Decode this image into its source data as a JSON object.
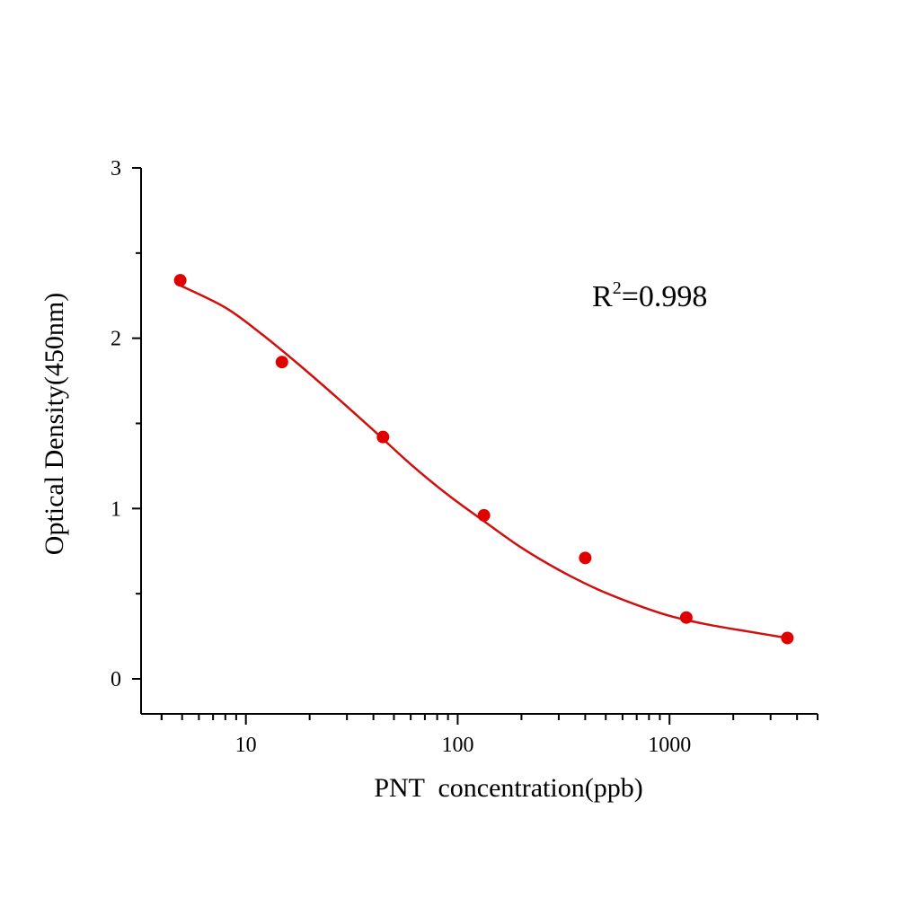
{
  "chart_data": {
    "type": "scatter",
    "title": "",
    "xlabel": "PNT  concentration(ppb)",
    "ylabel": "Optical Density(450nm)",
    "x_scale": "log",
    "xlim": [
      3.2,
      5000
    ],
    "ylim": [
      -0.2,
      3
    ],
    "x_ticks": [
      10,
      100,
      1000
    ],
    "x_tick_labels": [
      "10",
      "100",
      "1000"
    ],
    "y_ticks": [
      0,
      1,
      2,
      3
    ],
    "y_tick_labels": [
      "0",
      "1",
      "2",
      "3"
    ],
    "grid": false,
    "legend": "none",
    "annotation": {
      "prefix": "R",
      "superscript": "2",
      "suffix": "=0.998"
    },
    "series": [
      {
        "x": [
          4.9,
          14.8,
          44.4,
          133,
          400,
          1200,
          3600
        ],
        "y": [
          2.34,
          1.86,
          1.42,
          0.96,
          0.71,
          0.36,
          0.24
        ],
        "fit_curve": {
          "x": [
            4.9,
            8,
            12,
            18,
            27,
            40,
            60,
            90,
            135,
            200,
            300,
            450,
            680,
            1000,
            1500,
            2300,
            3600
          ],
          "y": [
            2.31,
            2.18,
            2.02,
            1.84,
            1.65,
            1.46,
            1.26,
            1.08,
            0.92,
            0.77,
            0.64,
            0.53,
            0.44,
            0.37,
            0.32,
            0.28,
            0.24
          ]
        }
      }
    ],
    "colors": {
      "points": "#e00000",
      "curve": "#d01010",
      "axes": "#000000"
    }
  }
}
